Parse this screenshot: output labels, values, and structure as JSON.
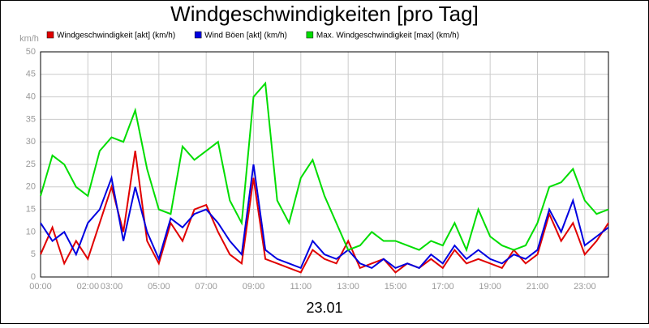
{
  "chart_data": {
    "type": "line",
    "title": "Windgeschwindigkeiten [pro Tag]",
    "y_label": "km/h",
    "x_label": "23.01",
    "x": [
      0,
      0.5,
      1,
      1.5,
      2,
      2.5,
      3,
      3.5,
      4,
      4.5,
      5,
      5.5,
      6,
      6.5,
      7,
      7.5,
      8,
      8.5,
      9,
      9.5,
      10,
      10.5,
      11,
      11.5,
      12,
      12.5,
      13,
      13.5,
      14,
      14.5,
      15,
      15.5,
      16,
      16.5,
      17,
      17.5,
      18,
      18.5,
      19,
      19.5,
      20,
      20.5,
      21,
      21.5,
      22,
      22.5,
      23,
      23.5,
      24
    ],
    "series": [
      {
        "name": "Windgeschwindigkeit [akt] (km/h)",
        "color": "#e00000",
        "values": [
          5,
          11,
          3,
          8,
          4,
          12,
          20,
          10,
          28,
          8,
          3,
          12,
          8,
          15,
          16,
          10,
          5,
          3,
          22,
          4,
          3,
          2,
          1,
          6,
          4,
          3,
          8,
          2,
          3,
          4,
          1,
          3,
          2,
          4,
          2,
          6,
          3,
          4,
          3,
          2,
          6,
          3,
          5,
          14,
          8,
          12,
          5,
          8,
          12
        ]
      },
      {
        "name": "Wind Böen [akt] (km/h)",
        "color": "#0000e0",
        "values": [
          12,
          8,
          10,
          5,
          12,
          15,
          22,
          8,
          20,
          10,
          4,
          13,
          11,
          14,
          15,
          12,
          8,
          5,
          25,
          6,
          4,
          3,
          2,
          8,
          5,
          4,
          6,
          3,
          2,
          4,
          2,
          3,
          2,
          5,
          3,
          7,
          4,
          6,
          4,
          3,
          5,
          4,
          6,
          15,
          10,
          17,
          7,
          9,
          11
        ]
      },
      {
        "name": "Max. Windgeschwindigkeit [max] (km/h)",
        "color": "#00dd00",
        "values": [
          18,
          27,
          25,
          20,
          18,
          28,
          31,
          30,
          37,
          24,
          15,
          14,
          29,
          26,
          28,
          30,
          17,
          12,
          40,
          43,
          17,
          12,
          22,
          26,
          18,
          12,
          6,
          7,
          10,
          8,
          8,
          7,
          6,
          8,
          7,
          12,
          6,
          15,
          9,
          7,
          6,
          7,
          12,
          20,
          21,
          24,
          17,
          14,
          15
        ]
      }
    ],
    "xlim": [
      0,
      24
    ],
    "xticks": [
      {
        "value": 0,
        "label": "00:00"
      },
      {
        "value": 2,
        "label": "02:00"
      },
      {
        "value": 3,
        "label": "03:00"
      },
      {
        "value": 5,
        "label": "05:00"
      },
      {
        "value": 7,
        "label": "07:00"
      },
      {
        "value": 9,
        "label": "09:00"
      },
      {
        "value": 11,
        "label": "11:00"
      },
      {
        "value": 13,
        "label": "13:00"
      },
      {
        "value": 15,
        "label": "15:00"
      },
      {
        "value": 17,
        "label": "17:00"
      },
      {
        "value": 19,
        "label": "19:00"
      },
      {
        "value": 21,
        "label": "21:00"
      },
      {
        "value": 23,
        "label": "23:00"
      }
    ],
    "ylim": [
      0,
      50
    ],
    "yticks": [
      0,
      5,
      10,
      15,
      20,
      25,
      30,
      35,
      40,
      45,
      50
    ],
    "grid": true
  }
}
